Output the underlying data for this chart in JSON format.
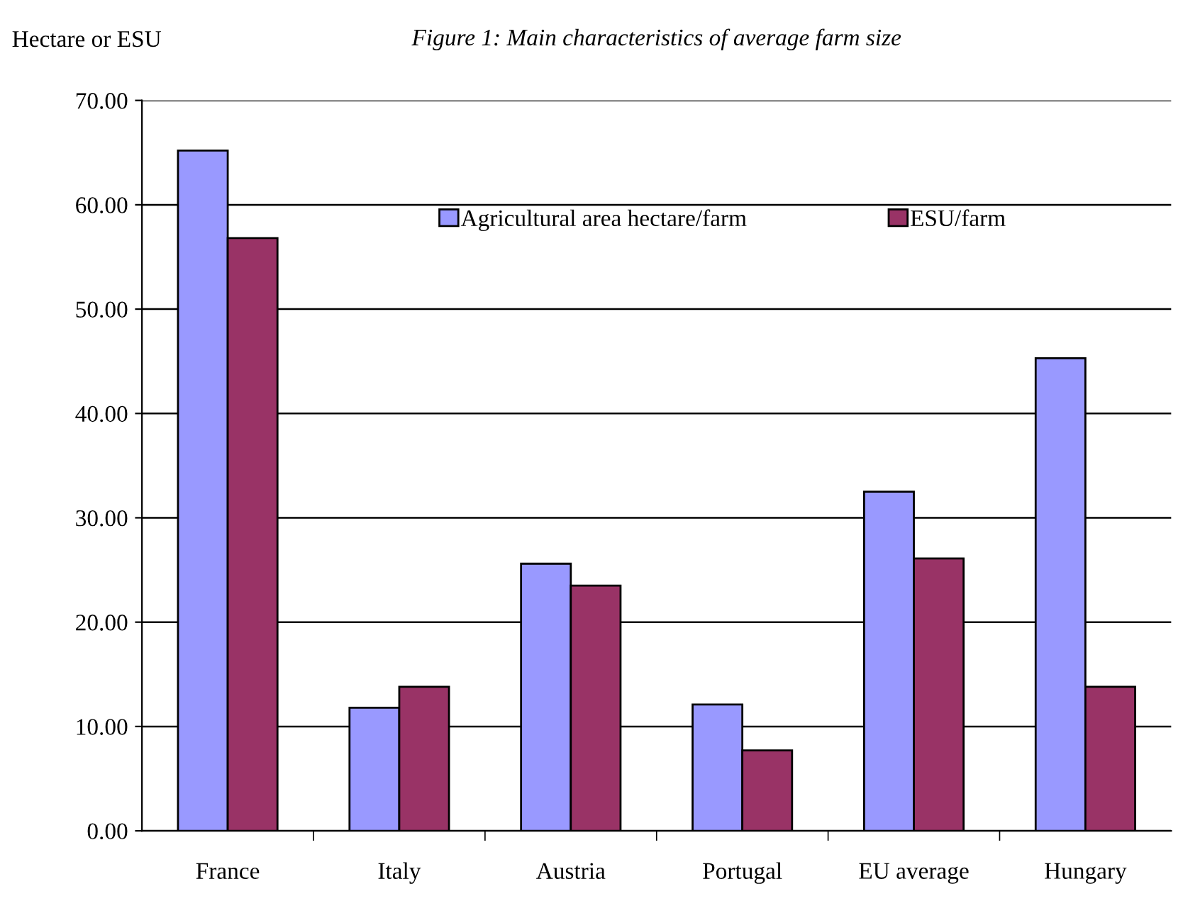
{
  "chart_data": {
    "type": "bar",
    "title": "Figure 1: Main characteristics of average farm size",
    "ylabel": "Hectare or ESU",
    "categories": [
      "France",
      "Italy",
      "Austria",
      "Portugal",
      "EU average",
      "Hungary"
    ],
    "series": [
      {
        "name": "Agricultural area hectare/farm",
        "color": "#9999ff",
        "values": [
          65.2,
          11.8,
          25.6,
          12.1,
          32.5,
          45.3
        ]
      },
      {
        "name": "ESU/farm",
        "color": "#993366",
        "values": [
          56.8,
          13.8,
          23.5,
          7.7,
          26.1,
          13.8
        ]
      }
    ],
    "ylim": [
      0,
      70
    ],
    "yticks": [
      {
        "value": 0,
        "label": "0.00"
      },
      {
        "value": 10,
        "label": "10.00"
      },
      {
        "value": 20,
        "label": "20.00"
      },
      {
        "value": 30,
        "label": "30.00"
      },
      {
        "value": 40,
        "label": "40.00"
      },
      {
        "value": 50,
        "label": "50.00"
      },
      {
        "value": 60,
        "label": "60.00"
      },
      {
        "value": 70,
        "label": "70.00"
      }
    ],
    "grid": "y",
    "legend": "top right"
  }
}
